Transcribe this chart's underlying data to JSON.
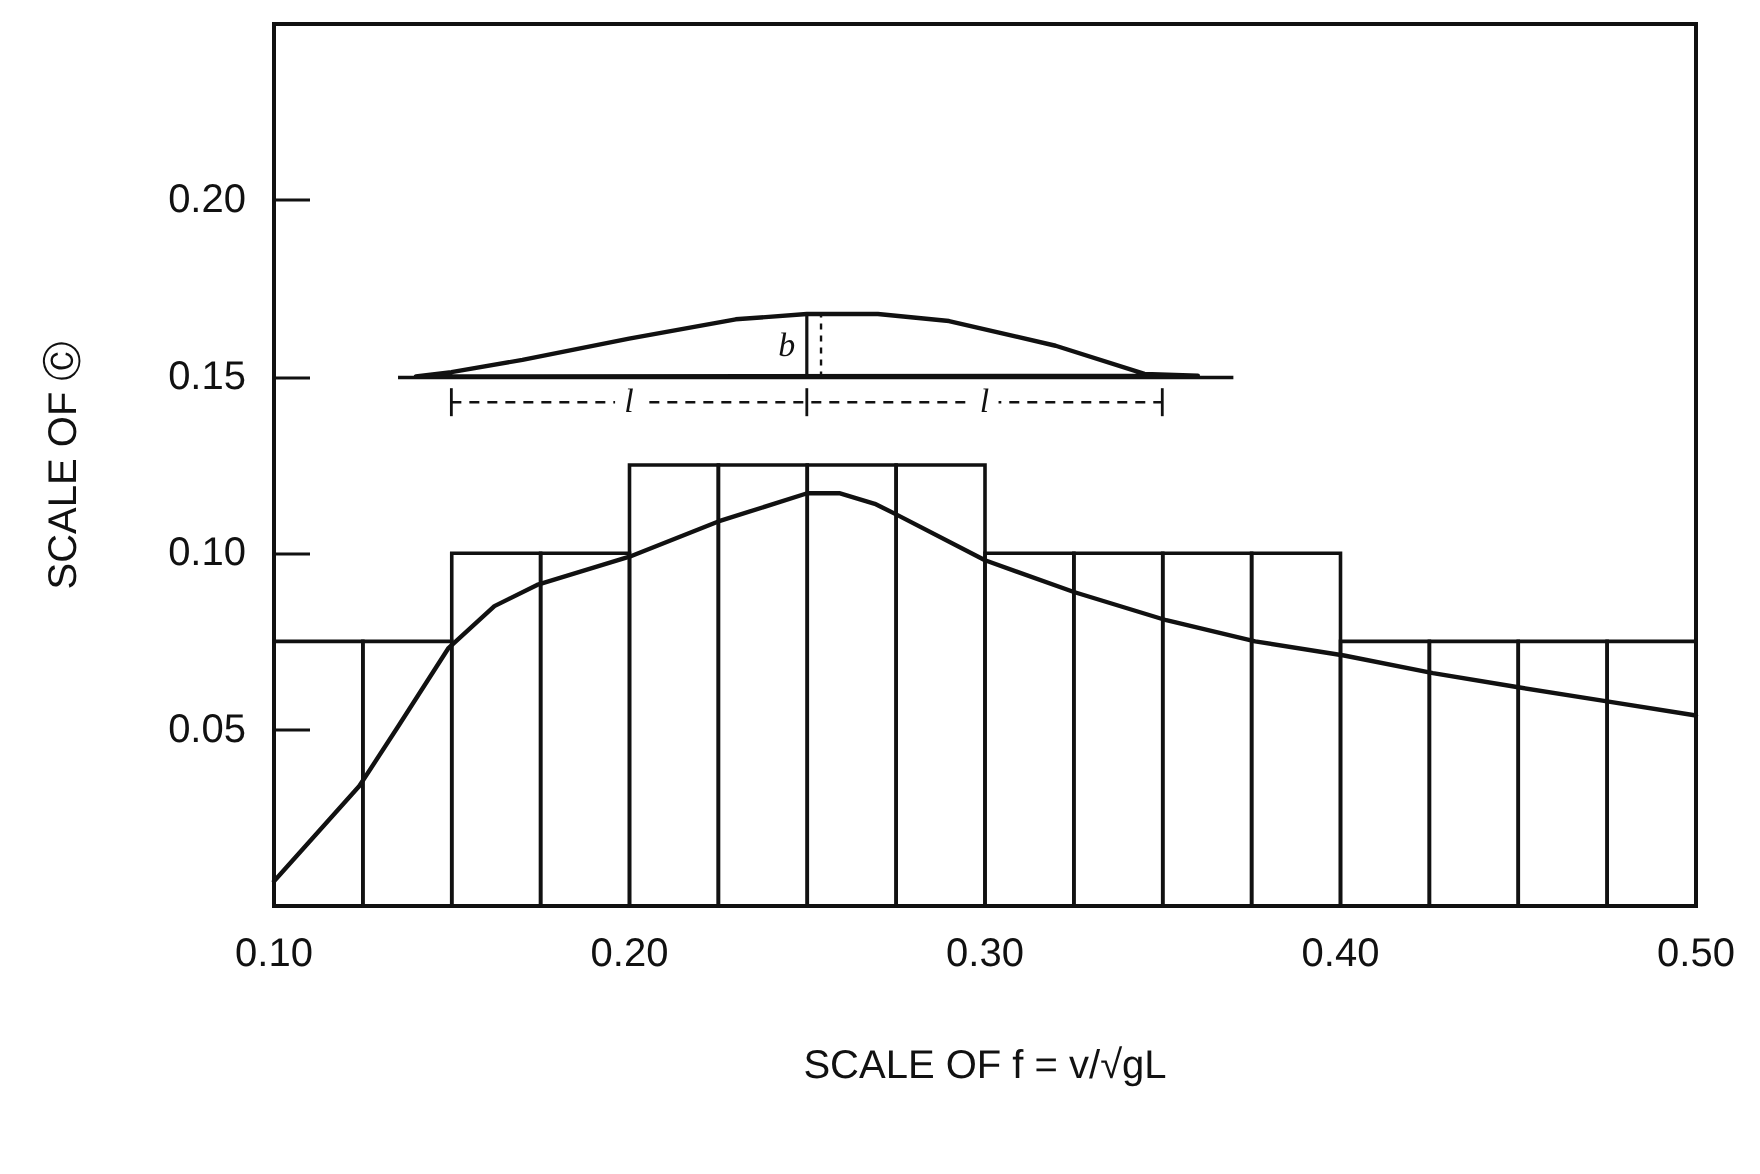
{
  "chart_data": {
    "type": "line",
    "xlabel": "SCALE OF f = v/√gL",
    "ylabel": "SCALE OF Ⓒ",
    "xlim": [
      0.1,
      0.5
    ],
    "ylim": [
      0,
      0.25
    ],
    "xticks": [
      {
        "value": 0.1,
        "label": "0.10"
      },
      {
        "value": 0.2,
        "label": "0.20"
      },
      {
        "value": 0.3,
        "label": "0.30"
      },
      {
        "value": 0.4,
        "label": "0.40"
      },
      {
        "value": 0.5,
        "label": "0.50"
      }
    ],
    "yticks": [
      {
        "value": 0.05,
        "label": "0.05"
      },
      {
        "value": 0.1,
        "label": "0.10"
      },
      {
        "value": 0.15,
        "label": "0.15"
      },
      {
        "value": 0.2,
        "label": "0.20"
      }
    ],
    "grid": false,
    "marker": "none",
    "annotations": [
      "l",
      "l",
      "b"
    ],
    "series": [
      {
        "type": "histogram",
        "color": "#111111",
        "bins": [
          0.1,
          0.125,
          0.15,
          0.175,
          0.2,
          0.225,
          0.25,
          0.275,
          0.3,
          0.325,
          0.35,
          0.375,
          0.4,
          0.425,
          0.45,
          0.475,
          0.5
        ],
        "values": [
          0.075,
          0.075,
          0.1,
          0.1,
          0.125,
          0.125,
          0.125,
          0.125,
          0.1,
          0.1,
          0.1,
          0.1,
          0.075,
          0.075,
          0.075,
          0.075
        ]
      },
      {
        "color": "#111111",
        "x": [
          0.1,
          0.124,
          0.135,
          0.149,
          0.162,
          0.174,
          0.2,
          0.225,
          0.25,
          0.259,
          0.269,
          0.275,
          0.3,
          0.325,
          0.351,
          0.376,
          0.401,
          0.426,
          0.45,
          0.475,
          0.5
        ],
        "values": [
          0.007,
          0.034,
          0.051,
          0.073,
          0.085,
          0.091,
          0.099,
          0.109,
          0.117,
          0.117,
          0.114,
          0.111,
          0.098,
          0.089,
          0.081,
          0.075,
          0.071,
          0.066,
          0.062,
          0.058,
          0.054
        ]
      }
    ]
  }
}
